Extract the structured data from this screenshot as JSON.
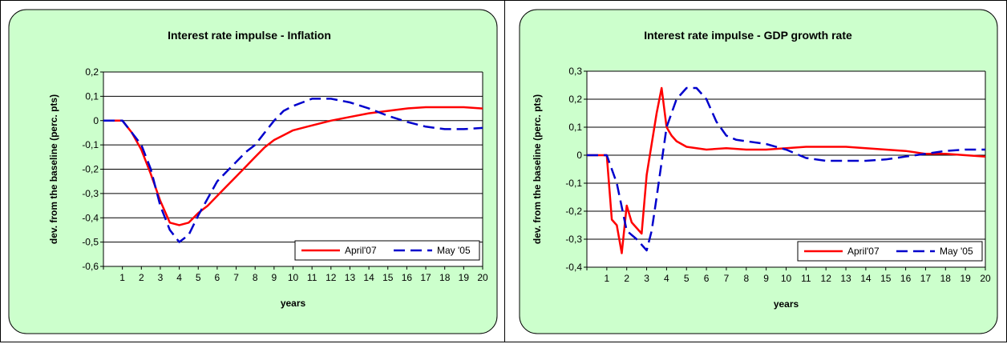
{
  "colors": {
    "panel_bg": "#ccffcc",
    "plot_bg": "#ffffff",
    "april_line": "#ff0000",
    "may_line": "#0000cc"
  },
  "chart_data": [
    {
      "type": "line",
      "title": "Interest rate impulse - Inflation",
      "xlabel": "years",
      "ylabel": "dev. from the baseline (perc. pts)",
      "ylim": [
        -0.6,
        0.2
      ],
      "yticks": [
        "0,2",
        "0,1",
        "0",
        "-0,1",
        "-0,2",
        "-0,3",
        "-0,4",
        "-0,5",
        "-0,6"
      ],
      "xticks": [
        "1",
        "2",
        "3",
        "4",
        "5",
        "6",
        "7",
        "8",
        "9",
        "10",
        "11",
        "12",
        "13",
        "14",
        "15",
        "16",
        "17",
        "18",
        "19",
        "20"
      ],
      "legend": "bottom-right",
      "grid": true,
      "series": [
        {
          "name": "April'07",
          "style": "solid",
          "color": "#ff0000",
          "x": [
            0,
            1,
            1.5,
            2,
            2.5,
            3,
            3.5,
            4,
            4.5,
            5,
            5.5,
            6,
            6.5,
            7,
            7.5,
            8,
            8.5,
            9,
            9.5,
            10,
            11,
            12,
            13,
            14,
            15,
            16,
            17,
            18,
            19,
            20
          ],
          "y": [
            0,
            0,
            -0.05,
            -0.12,
            -0.22,
            -0.33,
            -0.42,
            -0.43,
            -0.42,
            -0.38,
            -0.35,
            -0.31,
            -0.27,
            -0.23,
            -0.19,
            -0.15,
            -0.11,
            -0.08,
            -0.06,
            -0.04,
            -0.02,
            0,
            0.015,
            0.03,
            0.04,
            0.05,
            0.055,
            0.055,
            0.055,
            0.05
          ]
        },
        {
          "name": "May '05",
          "style": "dashed",
          "color": "#0000cc",
          "x": [
            0,
            1,
            1.5,
            2,
            2.5,
            3,
            3.5,
            4,
            4.5,
            5,
            5.5,
            6,
            6.5,
            7,
            7.5,
            8,
            8.5,
            9,
            9.5,
            10,
            10.5,
            11,
            11.5,
            12,
            13,
            14,
            15,
            16,
            17,
            18,
            19,
            20
          ],
          "y": [
            0,
            0,
            -0.05,
            -0.1,
            -0.2,
            -0.35,
            -0.45,
            -0.5,
            -0.47,
            -0.39,
            -0.32,
            -0.25,
            -0.21,
            -0.17,
            -0.13,
            -0.1,
            -0.05,
            0,
            0.04,
            0.06,
            0.075,
            0.09,
            0.09,
            0.09,
            0.075,
            0.05,
            0.02,
            -0.005,
            -0.025,
            -0.035,
            -0.035,
            -0.03
          ]
        }
      ]
    },
    {
      "type": "line",
      "title": "Interest rate impulse - GDP growth rate",
      "xlabel": "years",
      "ylabel": "dev. from the baseline (perc. pts)",
      "ylim": [
        -0.4,
        0.3
      ],
      "yticks": [
        "0,3",
        "0,2",
        "0,1",
        "0",
        "-0,1",
        "-0,2",
        "-0,3",
        "-0,4"
      ],
      "xticks": [
        "1",
        "2",
        "3",
        "4",
        "5",
        "6",
        "7",
        "8",
        "9",
        "10",
        "11",
        "12",
        "13",
        "14",
        "15",
        "16",
        "17",
        "18",
        "19",
        "20"
      ],
      "legend": "bottom-right",
      "grid": true,
      "series": [
        {
          "name": "April'07",
          "style": "solid",
          "color": "#ff0000",
          "x": [
            0,
            1,
            1.25,
            1.5,
            1.75,
            2,
            2.25,
            2.5,
            2.75,
            3,
            3.25,
            3.5,
            3.75,
            4,
            4.25,
            4.5,
            5,
            5.5,
            6,
            7,
            8,
            9,
            10,
            11,
            12,
            13,
            14,
            15,
            16,
            17,
            18,
            19,
            20
          ],
          "y": [
            0,
            0,
            -0.23,
            -0.25,
            -0.35,
            -0.18,
            -0.24,
            -0.26,
            -0.28,
            -0.07,
            0.04,
            0.15,
            0.24,
            0.1,
            0.07,
            0.05,
            0.03,
            0.025,
            0.02,
            0.025,
            0.02,
            0.02,
            0.025,
            0.03,
            0.03,
            0.03,
            0.025,
            0.02,
            0.015,
            0.005,
            0.005,
            0,
            -0.005
          ]
        },
        {
          "name": "May '05",
          "style": "dashed",
          "color": "#0000cc",
          "x": [
            0,
            1,
            1.5,
            2,
            2.5,
            3,
            3.25,
            3.5,
            4,
            4.5,
            5,
            5.5,
            6,
            6.5,
            7,
            7.5,
            8,
            9,
            10,
            11,
            12,
            13,
            14,
            15,
            16,
            17,
            18,
            19,
            20
          ],
          "y": [
            0,
            0,
            -0.1,
            -0.27,
            -0.3,
            -0.34,
            -0.27,
            -0.15,
            0.1,
            0.2,
            0.24,
            0.24,
            0.2,
            0.12,
            0.07,
            0.055,
            0.05,
            0.04,
            0.02,
            -0.01,
            -0.02,
            -0.02,
            -0.02,
            -0.015,
            -0.005,
            0.005,
            0.015,
            0.02,
            0.02
          ]
        }
      ]
    }
  ]
}
